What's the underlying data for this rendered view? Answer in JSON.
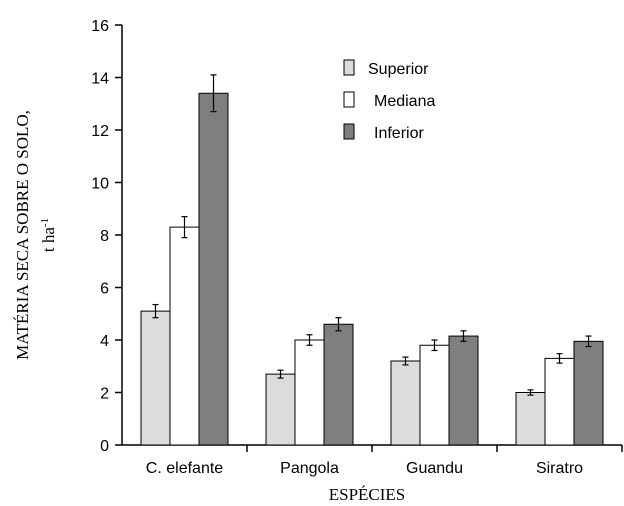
{
  "chart_data": {
    "type": "bar",
    "xlabel": "ESPÉCIES",
    "ylabel_line1": "MATÉRIA SECA SOBRE O SOLO,",
    "ylabel_line2": "t ha",
    "ylabel_sup": "-1",
    "ylim": [
      0,
      16
    ],
    "yticks": [
      0,
      2,
      4,
      6,
      8,
      10,
      12,
      14,
      16
    ],
    "categories": [
      "C. elefante",
      "Pangola",
      "Guandu",
      "Siratro"
    ],
    "legend_position": "top-right",
    "grid": false,
    "series": [
      {
        "name": "Superior",
        "color": "#dcdcdc",
        "values": [
          5.1,
          2.7,
          3.2,
          2.0
        ],
        "errors": [
          0.25,
          0.15,
          0.15,
          0.1
        ]
      },
      {
        "name": "Mediana",
        "color": "#ffffff",
        "values": [
          8.3,
          4.0,
          3.8,
          3.3
        ],
        "errors": [
          0.4,
          0.2,
          0.2,
          0.18
        ]
      },
      {
        "name": "Inferior",
        "color": "#7f7f7f",
        "values": [
          13.4,
          4.6,
          4.15,
          3.95
        ],
        "errors": [
          0.7,
          0.25,
          0.2,
          0.2
        ]
      }
    ]
  }
}
